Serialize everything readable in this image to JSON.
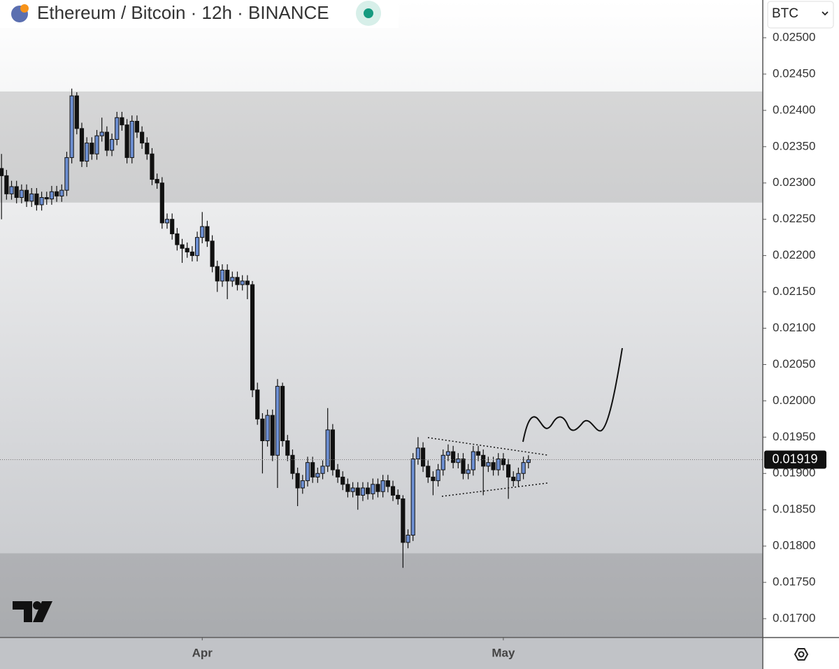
{
  "chart_data": {
    "type": "candlestick",
    "title": "Ethereum / Bitcoin · 12h · BINANCE",
    "currency": "BTC",
    "up_color": "#6d8fd2",
    "down_color": "#111111",
    "ohlc": {
      "open": [
        0.0232,
        0.0231,
        0.02285,
        0.02295,
        0.0228,
        0.0229,
        0.02275,
        0.02285,
        0.0227,
        0.0228,
        0.02278,
        0.02288,
        0.02282,
        0.0229,
        0.02335,
        0.0242,
        0.02375,
        0.0233,
        0.02355,
        0.0234,
        0.02365,
        0.0237,
        0.02345,
        0.0236,
        0.0239,
        0.0238,
        0.02335,
        0.02385,
        0.0237,
        0.02355,
        0.0234,
        0.02305,
        0.023,
        0.02245,
        0.0225,
        0.0223,
        0.02215,
        0.0221,
        0.02205,
        0.022,
        0.02225,
        0.0224,
        0.0222,
        0.02185,
        0.02165,
        0.0218,
        0.02165,
        0.0217,
        0.0216,
        0.02165,
        0.0216,
        0.02015,
        0.01975,
        0.01945,
        0.0198,
        0.01925,
        0.0202,
        0.01945,
        0.01925,
        0.019,
        0.0188,
        0.0189,
        0.01915,
        0.01895,
        0.019,
        0.0191,
        0.0196,
        0.01905,
        0.01895,
        0.01885,
        0.01875,
        0.0188,
        0.0187,
        0.0188,
        0.01872,
        0.01885,
        0.01875,
        0.0189,
        0.01882,
        0.0187,
        0.01865,
        0.01805,
        0.01815,
        0.0192,
        0.01935,
        0.0191,
        0.01895,
        0.0189,
        0.01905,
        0.01925,
        0.0193,
        0.01915,
        0.0192,
        0.019,
        0.01905,
        0.0193,
        0.01925,
        0.0191,
        0.01915,
        0.01905,
        0.0192,
        0.01912,
        0.01895,
        0.0189,
        0.019,
        0.01915
      ],
      "high": [
        0.0234,
        0.02318,
        0.02303,
        0.02303,
        0.02298,
        0.02298,
        0.02293,
        0.02293,
        0.02288,
        0.02288,
        0.02296,
        0.02296,
        0.02298,
        0.02343,
        0.0243,
        0.02425,
        0.02383,
        0.02363,
        0.02363,
        0.02373,
        0.0239,
        0.02378,
        0.02368,
        0.02398,
        0.02398,
        0.02388,
        0.02393,
        0.02393,
        0.02378,
        0.02363,
        0.02348,
        0.02313,
        0.02308,
        0.02258,
        0.02258,
        0.02238,
        0.02223,
        0.02218,
        0.02213,
        0.02233,
        0.0226,
        0.02248,
        0.02228,
        0.02193,
        0.02188,
        0.02188,
        0.02178,
        0.02178,
        0.02173,
        0.02173,
        0.02165,
        0.02025,
        0.01983,
        0.01988,
        0.01988,
        0.0203,
        0.02025,
        0.01953,
        0.01933,
        0.01908,
        0.01898,
        0.01923,
        0.01923,
        0.01908,
        0.01918,
        0.0199,
        0.01968,
        0.01913,
        0.01903,
        0.01893,
        0.01888,
        0.01888,
        0.01888,
        0.01888,
        0.01893,
        0.01893,
        0.01898,
        0.01898,
        0.0189,
        0.01878,
        0.0187,
        0.01823,
        0.01928,
        0.0195,
        0.01943,
        0.01918,
        0.01903,
        0.01913,
        0.01933,
        0.0194,
        0.01938,
        0.01928,
        0.01928,
        0.01913,
        0.01938,
        0.01938,
        0.01933,
        0.01923,
        0.01923,
        0.01928,
        0.01928,
        0.0192,
        0.01903,
        0.01908,
        0.01923,
        0.01925
      ],
      "low": [
        0.0225,
        0.02277,
        0.02277,
        0.02272,
        0.02272,
        0.02267,
        0.02267,
        0.02262,
        0.02262,
        0.0227,
        0.0227,
        0.02274,
        0.02274,
        0.02282,
        0.02327,
        0.02367,
        0.02322,
        0.02322,
        0.02332,
        0.02332,
        0.02357,
        0.02337,
        0.02337,
        0.02352,
        0.02372,
        0.02327,
        0.02327,
        0.02362,
        0.02347,
        0.02332,
        0.02297,
        0.02292,
        0.02237,
        0.02237,
        0.02222,
        0.02207,
        0.0219,
        0.02197,
        0.02192,
        0.02192,
        0.02217,
        0.02212,
        0.02177,
        0.0215,
        0.02157,
        0.0214,
        0.02157,
        0.02152,
        0.02152,
        0.0214,
        0.02005,
        0.01967,
        0.019,
        0.01937,
        0.01917,
        0.0188,
        0.01937,
        0.01917,
        0.01892,
        0.01855,
        0.01872,
        0.01882,
        0.01887,
        0.01887,
        0.01892,
        0.01902,
        0.01897,
        0.01887,
        0.01877,
        0.01867,
        0.01867,
        0.0185,
        0.01862,
        0.01864,
        0.01864,
        0.01867,
        0.01867,
        0.01874,
        0.01862,
        0.01857,
        0.0177,
        0.01797,
        0.01807,
        0.01912,
        0.01902,
        0.01887,
        0.0187,
        0.01882,
        0.01897,
        0.01917,
        0.01907,
        0.01907,
        0.01892,
        0.01892,
        0.01897,
        0.01917,
        0.0187,
        0.01902,
        0.01897,
        0.01897,
        0.01904,
        0.01865,
        0.01882,
        0.01882,
        0.01892,
        0.01907
      ],
      "close": [
        0.0231,
        0.02285,
        0.02295,
        0.0228,
        0.0229,
        0.02275,
        0.02285,
        0.0227,
        0.0228,
        0.02278,
        0.02288,
        0.02282,
        0.0229,
        0.02335,
        0.0242,
        0.02375,
        0.0233,
        0.02355,
        0.0234,
        0.02365,
        0.0237,
        0.02345,
        0.0236,
        0.0239,
        0.0238,
        0.02335,
        0.02385,
        0.0237,
        0.02355,
        0.0234,
        0.02305,
        0.023,
        0.02245,
        0.0225,
        0.0223,
        0.02215,
        0.0221,
        0.02205,
        0.022,
        0.02225,
        0.0224,
        0.0222,
        0.02185,
        0.02165,
        0.0218,
        0.02165,
        0.0217,
        0.0216,
        0.02165,
        0.0216,
        0.02015,
        0.01975,
        0.01945,
        0.0198,
        0.01925,
        0.0202,
        0.01945,
        0.01925,
        0.019,
        0.0188,
        0.0189,
        0.01915,
        0.01895,
        0.019,
        0.0191,
        0.0196,
        0.01905,
        0.01895,
        0.01885,
        0.01875,
        0.0188,
        0.0187,
        0.0188,
        0.01872,
        0.01885,
        0.01875,
        0.0189,
        0.01882,
        0.0187,
        0.01865,
        0.01805,
        0.01815,
        0.0192,
        0.01935,
        0.0191,
        0.01895,
        0.0189,
        0.01905,
        0.01925,
        0.0193,
        0.01915,
        0.0192,
        0.019,
        0.01905,
        0.0193,
        0.01925,
        0.0191,
        0.01915,
        0.01905,
        0.0192,
        0.01912,
        0.01895,
        0.0189,
        0.019,
        0.01915,
        0.01919
      ]
    },
    "ylim": [
      0.01674,
      0.02552
    ],
    "yticks": [
      {
        "value": 0.025,
        "label": "0.02500"
      },
      {
        "value": 0.0245,
        "label": "0.02450"
      },
      {
        "value": 0.024,
        "label": "0.02400"
      },
      {
        "value": 0.0235,
        "label": "0.02350"
      },
      {
        "value": 0.023,
        "label": "0.02300"
      },
      {
        "value": 0.0225,
        "label": "0.02250"
      },
      {
        "value": 0.022,
        "label": "0.02200"
      },
      {
        "value": 0.0215,
        "label": "0.02150"
      },
      {
        "value": 0.021,
        "label": "0.02100"
      },
      {
        "value": 0.0205,
        "label": "0.02050"
      },
      {
        "value": 0.02,
        "label": "0.02000"
      },
      {
        "value": 0.0195,
        "label": "0.01950"
      },
      {
        "value": 0.019,
        "label": "0.01900"
      },
      {
        "value": 0.0185,
        "label": "0.01850"
      },
      {
        "value": 0.018,
        "label": "0.01800"
      },
      {
        "value": 0.0175,
        "label": "0.01750"
      },
      {
        "value": 0.017,
        "label": "0.01700"
      }
    ],
    "xlim": [
      -0.3,
      151.7
    ],
    "xticks": [
      {
        "value": 40,
        "label": "Apr"
      },
      {
        "value": 100,
        "label": "May"
      }
    ],
    "last_price": {
      "value": 0.01919,
      "label": "0.01919"
    },
    "zones": [
      [
        0.02426,
        0.02273
      ],
      [
        0.0179,
        0.01674
      ]
    ]
  }
}
